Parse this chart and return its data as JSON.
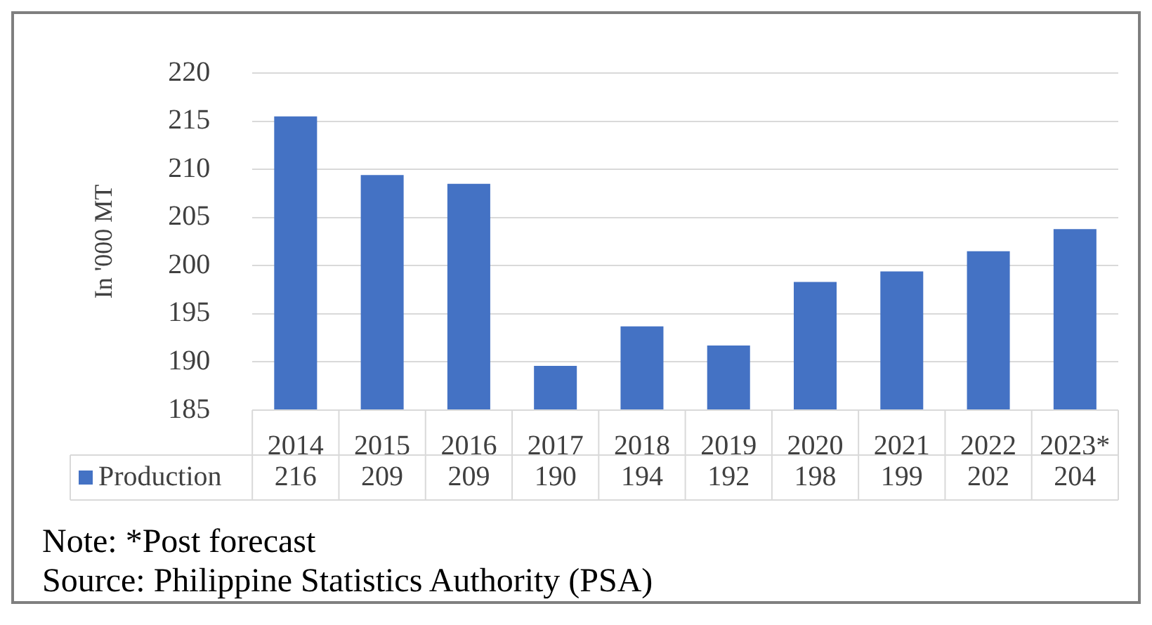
{
  "chart_data": {
    "type": "bar",
    "ylabel": "In '000 MT",
    "categories": [
      "2014",
      "2015",
      "2016",
      "2017",
      "2018",
      "2019",
      "2020",
      "2021",
      "2022",
      "2023*"
    ],
    "series": [
      {
        "name": "Production",
        "color": "#4472c4",
        "values": [
          215.5,
          209.4,
          208.5,
          189.6,
          193.7,
          191.7,
          198.3,
          199.4,
          201.5,
          203.8
        ],
        "value_labels": [
          "216",
          "209",
          "209",
          "190",
          "194",
          "192",
          "198",
          "199",
          "202",
          "204"
        ]
      }
    ],
    "ylim": [
      185,
      220
    ],
    "yticks": [
      185,
      190,
      195,
      200,
      205,
      210,
      215,
      220
    ],
    "grid": "y",
    "legend": "bottom",
    "annotations": [
      "Note: *Post forecast",
      "Source: Philippine Statistics Authority (PSA)"
    ]
  }
}
